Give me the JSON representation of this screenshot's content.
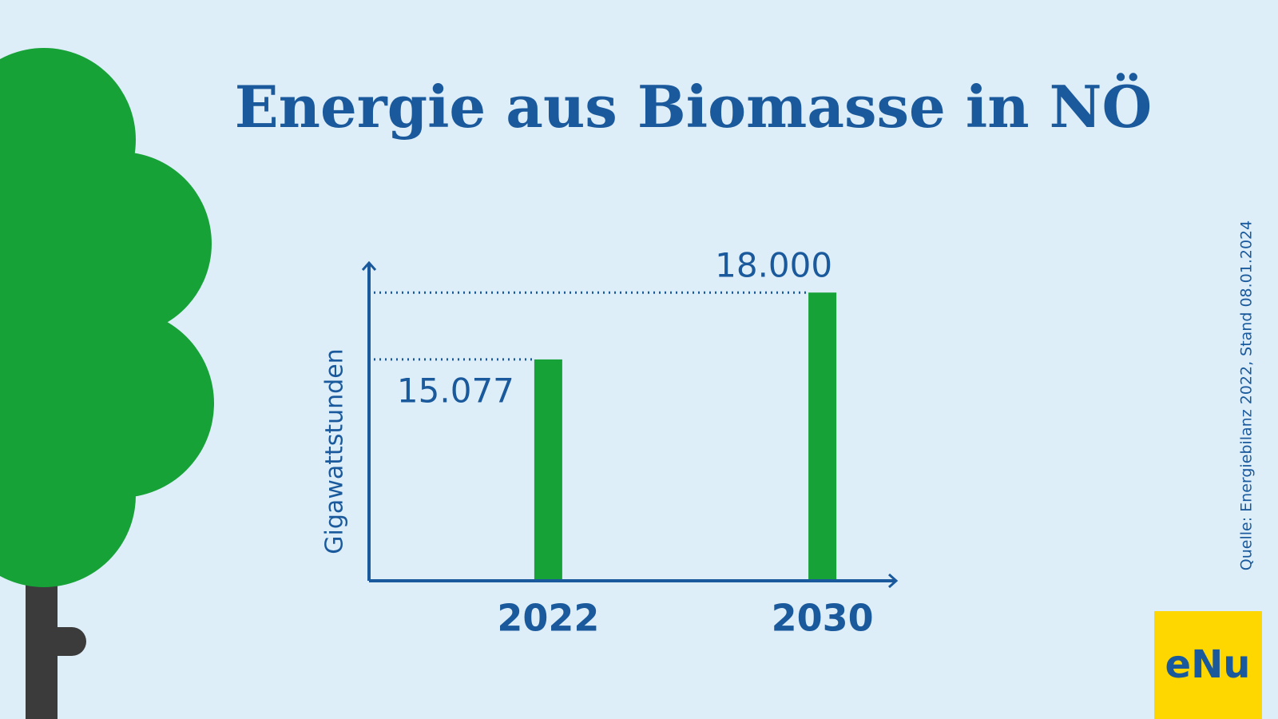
{
  "chart_data": {
    "type": "bar",
    "title": "Energie aus Biomasse in NÖ",
    "y_label": "Gigawattstunden",
    "categories": [
      "2022",
      "2030"
    ],
    "values": [
      15077,
      18000
    ],
    "value_labels": [
      "15.077",
      "18.000"
    ],
    "color": "#17a238",
    "axis_color": "#1a5a9c",
    "ylim": [
      5400,
      19300
    ],
    "source": "Quelle: Energiebilanz 2022, Stand 08.01.2024",
    "logo": "eNu"
  }
}
